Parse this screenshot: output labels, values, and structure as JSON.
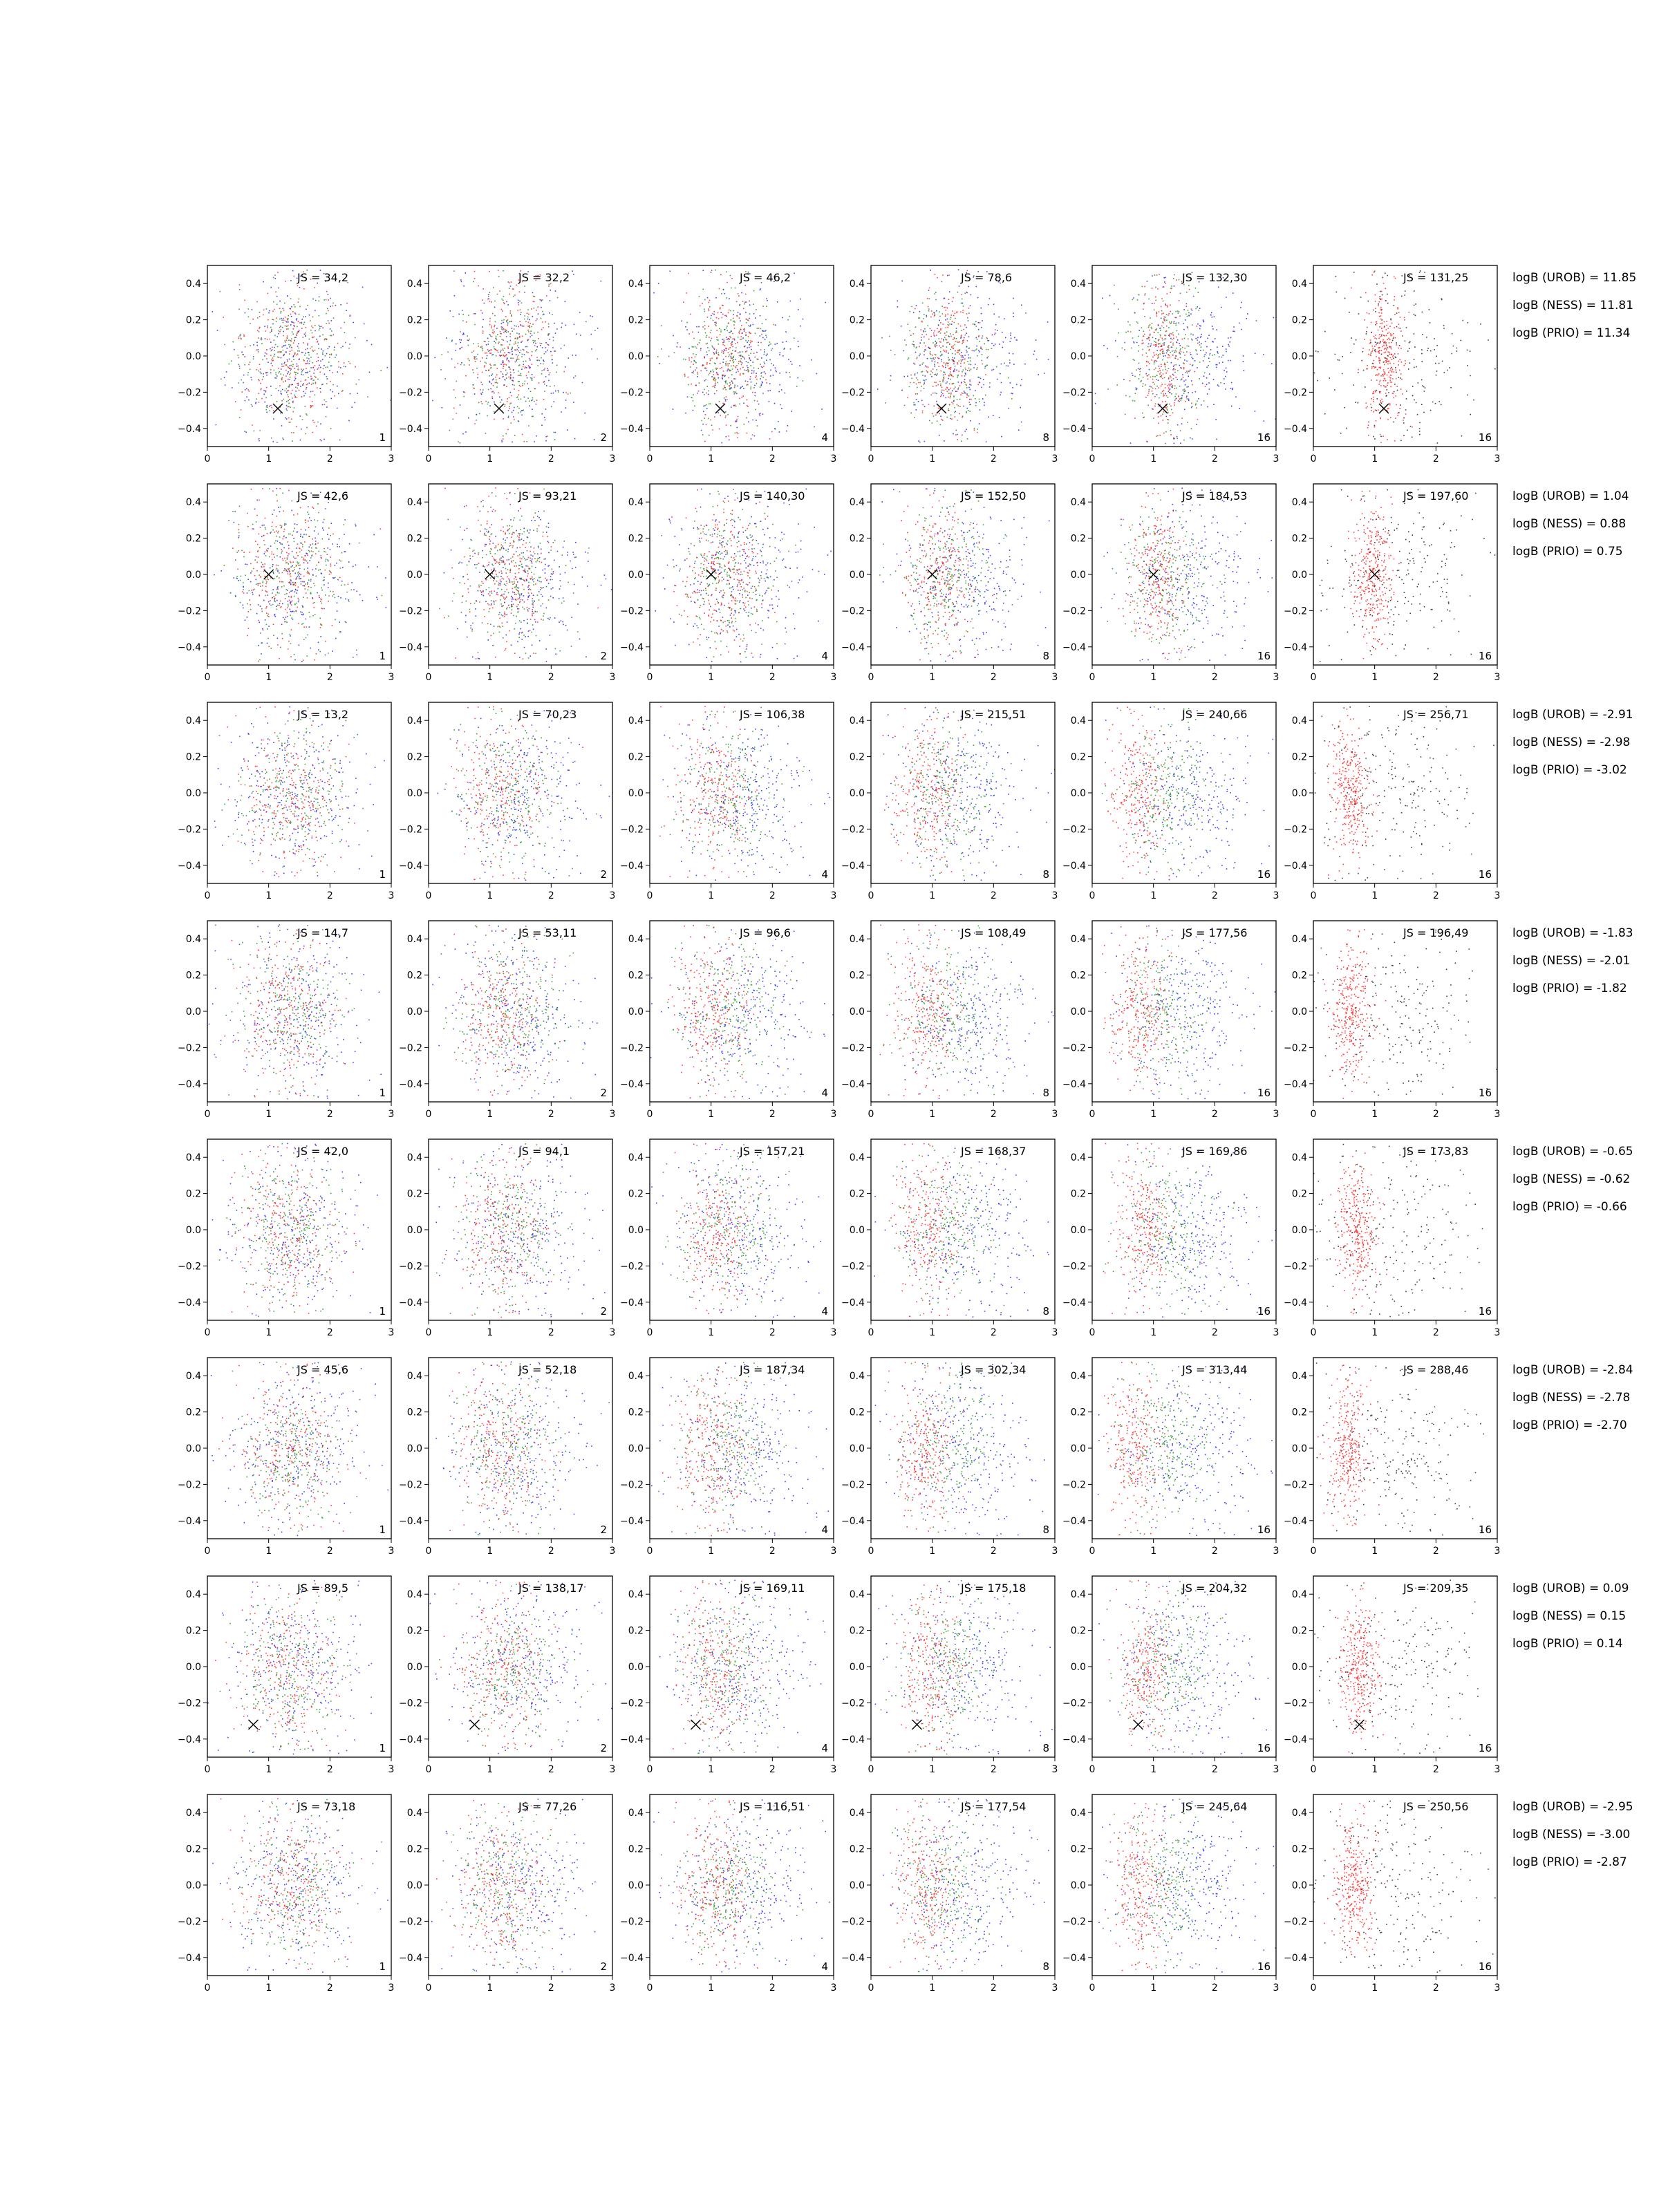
{
  "colors": {
    "red": "#ff0000",
    "green": "#008000",
    "blue": "#0000ff",
    "black": "#000000"
  },
  "chart_data": {
    "type": "scatter",
    "layout": "8 rows x 6 columns small multiples",
    "xlim": [
      0,
      3
    ],
    "ylim": [
      -0.5,
      0.5
    ],
    "x_ticks": [
      "0",
      "1",
      "2",
      "3"
    ],
    "y_ticks": [
      "0.4",
      "0.2",
      "0.0",
      "−0.2",
      "−0.4"
    ],
    "panel_counts": [
      "1",
      "2",
      "4",
      "8",
      "16",
      "16"
    ],
    "rows": [
      {
        "js": [
          "JS = 34,2",
          "JS = 32,2",
          "JS = 46,2",
          "JS = 78,6",
          "JS = 132,30",
          "JS = 131,25"
        ],
        "logB": [
          "logB (UROB) = 11.85",
          "logB (NESS) = 11.81",
          "logB (PRIO) = 11.34"
        ],
        "marker": {
          "x": 1.15,
          "y": -0.29
        }
      },
      {
        "js": [
          "JS = 42,6",
          "JS = 93,21",
          "JS = 140,30",
          "JS = 152,50",
          "JS = 184,53",
          "JS = 197,60"
        ],
        "logB": [
          "logB (UROB) = 1.04",
          "logB (NESS) = 0.88",
          "logB (PRIO) = 0.75"
        ],
        "marker": {
          "x": 1.0,
          "y": 0.0
        }
      },
      {
        "js": [
          "JS = 13,2",
          "JS = 70,23",
          "JS = 106,38",
          "JS = 215,51",
          "JS = 240,66",
          "JS = 256,71"
        ],
        "logB": [
          "logB (UROB) = -2.91",
          "logB (NESS) = -2.98",
          "logB (PRIO) = -3.02"
        ]
      },
      {
        "js": [
          "JS = 14,7",
          "JS = 53,11",
          "JS = 96,6",
          "JS = 108,49",
          "JS = 177,56",
          "JS = 196,49"
        ],
        "logB": [
          "logB (UROB) = -1.83",
          "logB (NESS) = -2.01",
          "logB (PRIO) = -1.82"
        ]
      },
      {
        "js": [
          "JS = 42,0",
          "JS = 94,1",
          "JS = 157,21",
          "JS = 168,37",
          "JS = 169,86",
          "JS = 173,83"
        ],
        "logB": [
          "logB (UROB) = -0.65",
          "logB (NESS) = -0.62",
          "logB (PRIO) = -0.66"
        ]
      },
      {
        "js": [
          "JS = 45,6",
          "JS = 52,18",
          "JS = 187,34",
          "JS = 302,34",
          "JS = 313,44",
          "JS = 288,46"
        ],
        "logB": [
          "logB (UROB) = -2.84",
          "logB (NESS) = -2.78",
          "logB (PRIO) = -2.70"
        ]
      },
      {
        "js": [
          "JS = 89,5",
          "JS = 138,17",
          "JS = 169,11",
          "JS = 175,18",
          "JS = 204,32",
          "JS = 209,35"
        ],
        "logB": [
          "logB (UROB) = 0.09",
          "logB (NESS) = 0.15",
          "logB (PRIO) = 0.14"
        ],
        "marker": {
          "x": 0.75,
          "y": -0.32
        }
      },
      {
        "js": [
          "JS = 73,18",
          "JS = 77,26",
          "JS = 116,51",
          "JS = 177,54",
          "JS = 245,64",
          "JS = 250,56"
        ],
        "logB": [
          "logB (UROB) = -2.95",
          "logB (NESS) = -3.00",
          "logB (PRIO) = -2.87"
        ]
      }
    ]
  }
}
